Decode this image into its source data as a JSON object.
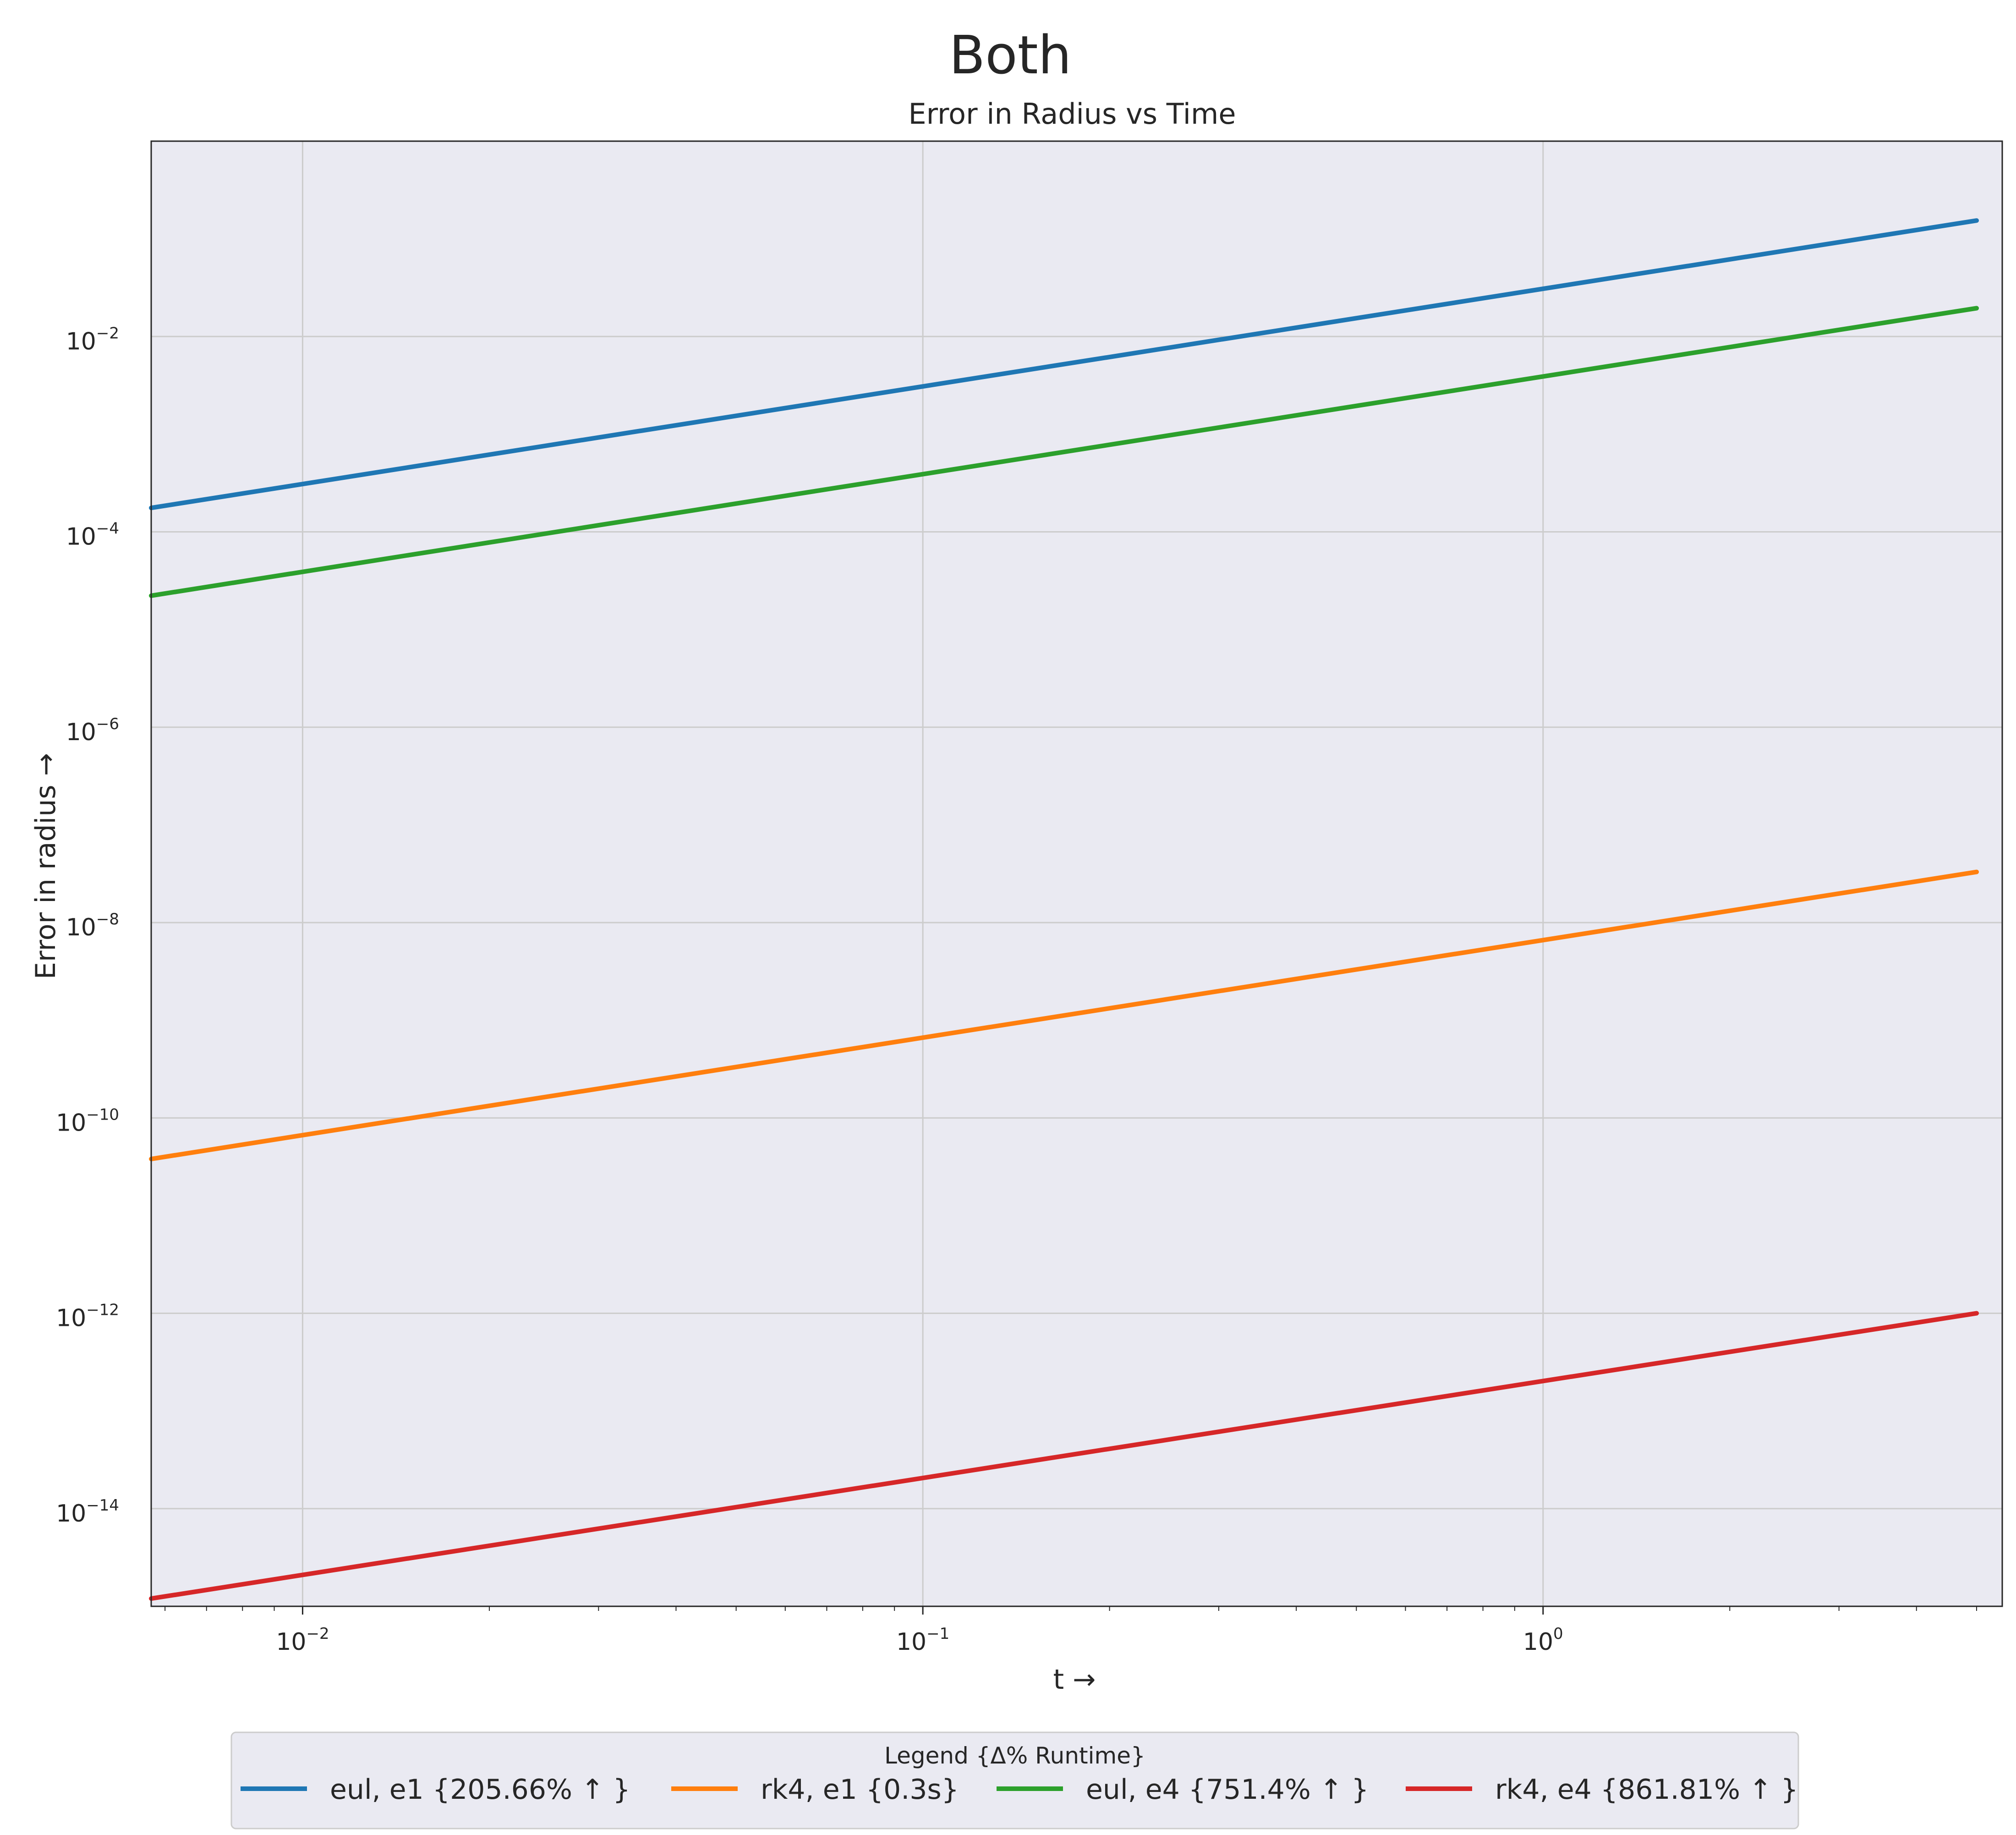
{
  "figure": {
    "suptitle": "Both"
  },
  "chart_data": {
    "type": "line",
    "title": "Error in Radius vs Time",
    "xlabel": "t  →",
    "ylabel": "Error in radius  →",
    "xscale": "log",
    "yscale": "log",
    "xlim": [
      0.0057,
      5.5
    ],
    "ylim": [
      1e-15,
      1
    ],
    "xticks": [
      {
        "value": 0.01,
        "base": "10",
        "exp": "−2"
      },
      {
        "value": 0.1,
        "base": "10",
        "exp": "−1"
      },
      {
        "value": 1,
        "base": "10",
        "exp": "0"
      }
    ],
    "yticks": [
      {
        "value": 0.01,
        "base": "10",
        "exp": "−2"
      },
      {
        "value": 0.0001,
        "base": "10",
        "exp": "−4"
      },
      {
        "value": 1e-06,
        "base": "10",
        "exp": "−6"
      },
      {
        "value": 1e-08,
        "base": "10",
        "exp": "−8"
      },
      {
        "value": 1e-10,
        "base": "10",
        "exp": "−10"
      },
      {
        "value": 1e-12,
        "base": "10",
        "exp": "−12"
      },
      {
        "value": 1e-14,
        "base": "10",
        "exp": "−14"
      }
    ],
    "grid": true,
    "legend": {
      "title": "Legend {Δ% Runtime}",
      "placement": "bottom-center, below axes",
      "columns": 4
    },
    "series": [
      {
        "name": "eul, e1 {205.66% ↑ }",
        "color": "#1f77b4",
        "x": [
          0.0057,
          5.0
        ],
        "y": [
          0.000176,
          0.154
        ]
      },
      {
        "name": "rk4, e1 {0.3s}",
        "color": "#ff7f0e",
        "x": [
          0.0057,
          5.0
        ],
        "y": [
          3.8e-11,
          3.3e-08
        ]
      },
      {
        "name": "eul, e4 {751.4% ↑ }",
        "color": "#2ca02c",
        "x": [
          0.0057,
          5.0
        ],
        "y": [
          2.22e-05,
          0.0195
        ]
      },
      {
        "name": "rk4, e4 {861.81% ↑ }",
        "color": "#d62728",
        "x": [
          0.0057,
          5.0
        ],
        "y": [
          1.2e-15,
          1e-12
        ]
      }
    ]
  }
}
